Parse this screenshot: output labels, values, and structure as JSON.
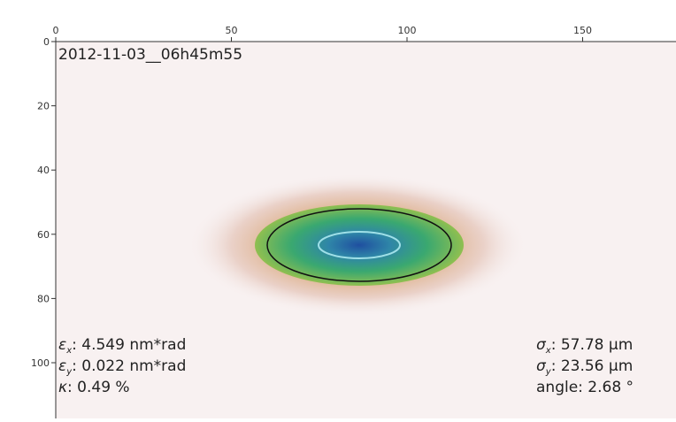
{
  "chart_data": {
    "type": "image",
    "title": "2012-11-03__06h45m55",
    "xlim": [
      0,
      176
    ],
    "ylim": [
      0,
      117
    ],
    "y_inverted": true,
    "x_axis_position": "top",
    "xticks": [
      0,
      50,
      100,
      150
    ],
    "yticks": [
      0,
      20,
      40,
      60,
      80,
      100
    ],
    "annotations_left": [
      {
        "symbol": "ε",
        "sub": "x",
        "text": ": 4.549 nm*rad"
      },
      {
        "symbol": "ε",
        "sub": "y",
        "text": ": 0.022 nm*rad"
      },
      {
        "symbol": "κ",
        "sub": "",
        "text": ": 0.49 %"
      }
    ],
    "annotations_right": [
      {
        "symbol": "σ",
        "sub": "x",
        "text": ": 57.78 μm"
      },
      {
        "symbol": "σ",
        "sub": "y",
        "text": ": 23.56 μm"
      },
      {
        "symbol": "",
        "sub": "",
        "text": "angle: 2.68 °"
      }
    ]
  }
}
